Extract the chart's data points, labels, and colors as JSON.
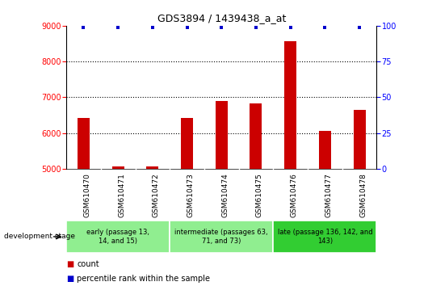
{
  "title": "GDS3894 / 1439438_a_at",
  "samples": [
    "GSM610470",
    "GSM610471",
    "GSM610472",
    "GSM610473",
    "GSM610474",
    "GSM610475",
    "GSM610476",
    "GSM610477",
    "GSM610478"
  ],
  "counts": [
    6430,
    5070,
    5070,
    6430,
    6890,
    6830,
    8560,
    6060,
    6640
  ],
  "percentile_value": 99,
  "ylim_left": [
    5000,
    9000
  ],
  "ylim_right": [
    0,
    100
  ],
  "yticks_left": [
    5000,
    6000,
    7000,
    8000,
    9000
  ],
  "yticks_right": [
    0,
    25,
    50,
    75,
    100
  ],
  "hgrid_lines": [
    6000,
    7000,
    8000
  ],
  "bar_color": "#cc0000",
  "percentile_color": "#0000cc",
  "group_labels": [
    "early (passage 13,\n14, and 15)",
    "intermediate (passages 63,\n71, and 73)",
    "late (passage 136, 142, and\n143)"
  ],
  "group_starts": [
    0,
    3,
    6
  ],
  "group_ends": [
    3,
    6,
    9
  ],
  "group_colors": [
    "#90ee90",
    "#90ee90",
    "#32cd32"
  ],
  "dev_stage_label": "development stage",
  "legend_count_label": "count",
  "legend_pct_label": "percentile rank within the sample",
  "background_color": "#ffffff",
  "tick_bg_color": "#d3d3d3",
  "bar_width": 0.35,
  "title_fontsize": 9,
  "tick_fontsize": 7,
  "label_fontsize": 6.5,
  "group_fontsize": 6,
  "legend_fontsize": 7
}
